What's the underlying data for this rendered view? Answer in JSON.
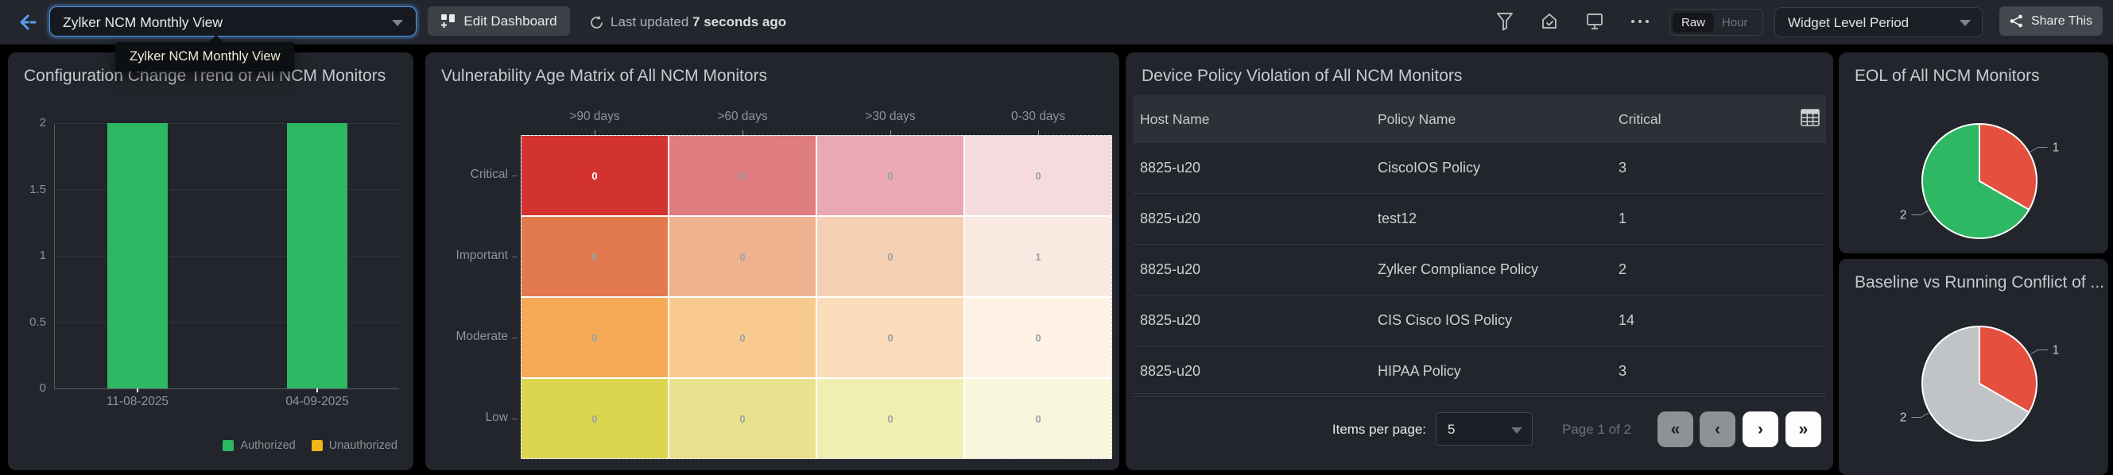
{
  "topbar": {
    "view_selector": {
      "value": "Zylker NCM Monthly View"
    },
    "edit_dashboard_label": "Edit Dashboard",
    "last_updated_prefix": "Last updated ",
    "last_updated_value": "7 seconds ago",
    "toggle": {
      "options": [
        "Raw",
        "Hour"
      ],
      "selected": "Raw"
    },
    "widget_period_label": "Widget Level Period",
    "share_label": "Share This"
  },
  "tooltip": {
    "text": "Zylker NCM Monthly View"
  },
  "panels": {
    "config_trend": {
      "title": "Configuration Change Trend of All NCM Monitors"
    },
    "vuln_matrix": {
      "title": "Vulnerability Age Matrix of All NCM Monitors"
    },
    "policy_violation": {
      "title": "Device Policy Violation of All NCM Monitors",
      "columns": [
        "Host Name",
        "Policy Name",
        "Critical"
      ],
      "rows": [
        [
          "8825-u20",
          "CiscoIOS Policy",
          "3"
        ],
        [
          "8825-u20",
          "test12",
          "1"
        ],
        [
          "8825-u20",
          "Zylker Compliance Policy",
          "2"
        ],
        [
          "8825-u20",
          "CIS Cisco IOS Policy",
          "14"
        ],
        [
          "8825-u20",
          "HIPAA Policy",
          "3"
        ]
      ],
      "items_per_page_label": "Items per page:",
      "items_per_page_value": "5",
      "page_status": "Page 1 of 2"
    },
    "eol": {
      "title": "EOL of All NCM Monitors"
    },
    "baseline": {
      "title": "Baseline vs Running Conflict of ..."
    }
  },
  "chart_data": [
    {
      "id": "config_trend",
      "type": "bar",
      "title": "Configuration Change Trend of All NCM Monitors",
      "categories": [
        "11-08-2025",
        "04-09-2025"
      ],
      "series": [
        {
          "name": "Authorized",
          "color": "#2eb863",
          "values": [
            2,
            2
          ]
        },
        {
          "name": "Unauthorized",
          "color": "#f0b518",
          "values": [
            0,
            0
          ]
        }
      ],
      "ylim": [
        0,
        2
      ],
      "yticks": [
        0,
        0.5,
        1,
        1.5,
        2
      ],
      "grid": true,
      "legend_position": "bottom-right"
    },
    {
      "id": "vuln_matrix",
      "type": "heatmap",
      "title": "Vulnerability Age Matrix of All NCM Monitors",
      "columns": [
        ">90 days",
        ">60 days",
        ">30 days",
        "0-30 days"
      ],
      "rows": [
        "Critical",
        "Important",
        "Moderate",
        "Low"
      ],
      "values": [
        [
          0,
          0,
          0,
          0
        ],
        [
          0,
          0,
          0,
          1
        ],
        [
          0,
          0,
          0,
          0
        ],
        [
          0,
          0,
          0,
          0
        ]
      ],
      "cell_colors": [
        [
          "#d23230",
          "#df7c80",
          "#e9a8b2",
          "#f5dadf"
        ],
        [
          "#e37a4d",
          "#eeb28f",
          "#f4cfb4",
          "#fae9e0"
        ],
        [
          "#f6a956",
          "#f9ca90",
          "#fbdcbb",
          "#fdf2e4"
        ],
        [
          "#dcd64e",
          "#e8e28e",
          "#f1eeb1",
          "#f9f7db"
        ]
      ]
    },
    {
      "id": "eol",
      "type": "pie",
      "title": "EOL of All NCM Monitors",
      "labels": [
        "1",
        "2"
      ],
      "values": [
        1,
        2
      ],
      "colors": [
        "#e5503e",
        "#2eb863"
      ]
    },
    {
      "id": "baseline",
      "type": "pie",
      "title": "Baseline vs Running Conflict of ...",
      "labels": [
        "1",
        "2"
      ],
      "values": [
        1,
        2
      ],
      "colors": [
        "#e5503e",
        "#c1c4c7"
      ]
    }
  ]
}
